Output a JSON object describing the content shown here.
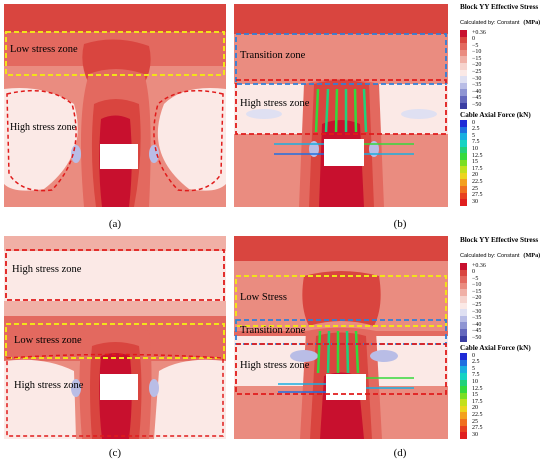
{
  "panels": [
    {
      "id": "a",
      "caption": "(a)",
      "zones": [
        {
          "label": "Low stress zone"
        },
        {
          "label": "High stress zone"
        }
      ]
    },
    {
      "id": "b",
      "caption": "(b)",
      "zones": [
        {
          "label": "Transition zone"
        },
        {
          "label": "High stress zone"
        }
      ]
    },
    {
      "id": "c",
      "caption": "(c)",
      "zones": [
        {
          "label": "High stress zone"
        },
        {
          "label": "Low stress zone"
        },
        {
          "label": "High stress zone"
        }
      ]
    },
    {
      "id": "d",
      "caption": "(d)",
      "zones": [
        {
          "label": "Low Stress"
        },
        {
          "label": "Transition zone"
        },
        {
          "label": "High stress zone"
        }
      ]
    }
  ],
  "legends": [
    {
      "stress_title": "Block YY Effective Stress",
      "stress_sub": "Calculated by: Constant",
      "stress_unit": "(MPa)",
      "stress_values": [
        "+0.36",
        "0",
        "−5",
        "−10",
        "−15",
        "−20",
        "−25",
        "−30",
        "−35",
        "−40",
        "−45",
        "−50"
      ],
      "cable_title": "Cable Axial Force (kN)",
      "cable_values": [
        "0",
        "2.5",
        "5",
        "7.5",
        "10",
        "12.5",
        "15",
        "17.5",
        "20",
        "22.5",
        "25",
        "27.5",
        "30"
      ]
    },
    {
      "stress_title": "Block YY Effective Stress",
      "stress_sub": "Calculated by: Constant",
      "stress_unit": "(MPa)",
      "stress_values": [
        "+0.36",
        "0",
        "−5",
        "−10",
        "−15",
        "−20",
        "−25",
        "−30",
        "−35",
        "−40",
        "−45",
        "−50"
      ],
      "cable_title": "Cable Axial Force (kN)",
      "cable_values": [
        "0",
        "2.5",
        "5",
        "7.5",
        "10",
        "12.5",
        "15",
        "17.5",
        "20",
        "22.5",
        "25",
        "27.5",
        "30"
      ]
    }
  ],
  "colors": {
    "stress": [
      "#c8102e",
      "#d9453f",
      "#e3695f",
      "#ea8c80",
      "#f0b0a6",
      "#f6d3cd",
      "#fbe9e6",
      "#dfe0f2",
      "#b9bde6",
      "#8f95d3",
      "#6468bd",
      "#3a3ea3"
    ],
    "cable": [
      "#1f2bd6",
      "#1f6fe0",
      "#19aee0",
      "#16d3c3",
      "#22d17a",
      "#35d93c",
      "#7bde22",
      "#c2e01c",
      "#ecd51d",
      "#f3a01e",
      "#f0701f",
      "#e8401f",
      "#e01f1f"
    ],
    "red_dash": "#e01b1b",
    "yellow_dash": "#f2e21a",
    "blue_dash": "#2f7fd8"
  }
}
